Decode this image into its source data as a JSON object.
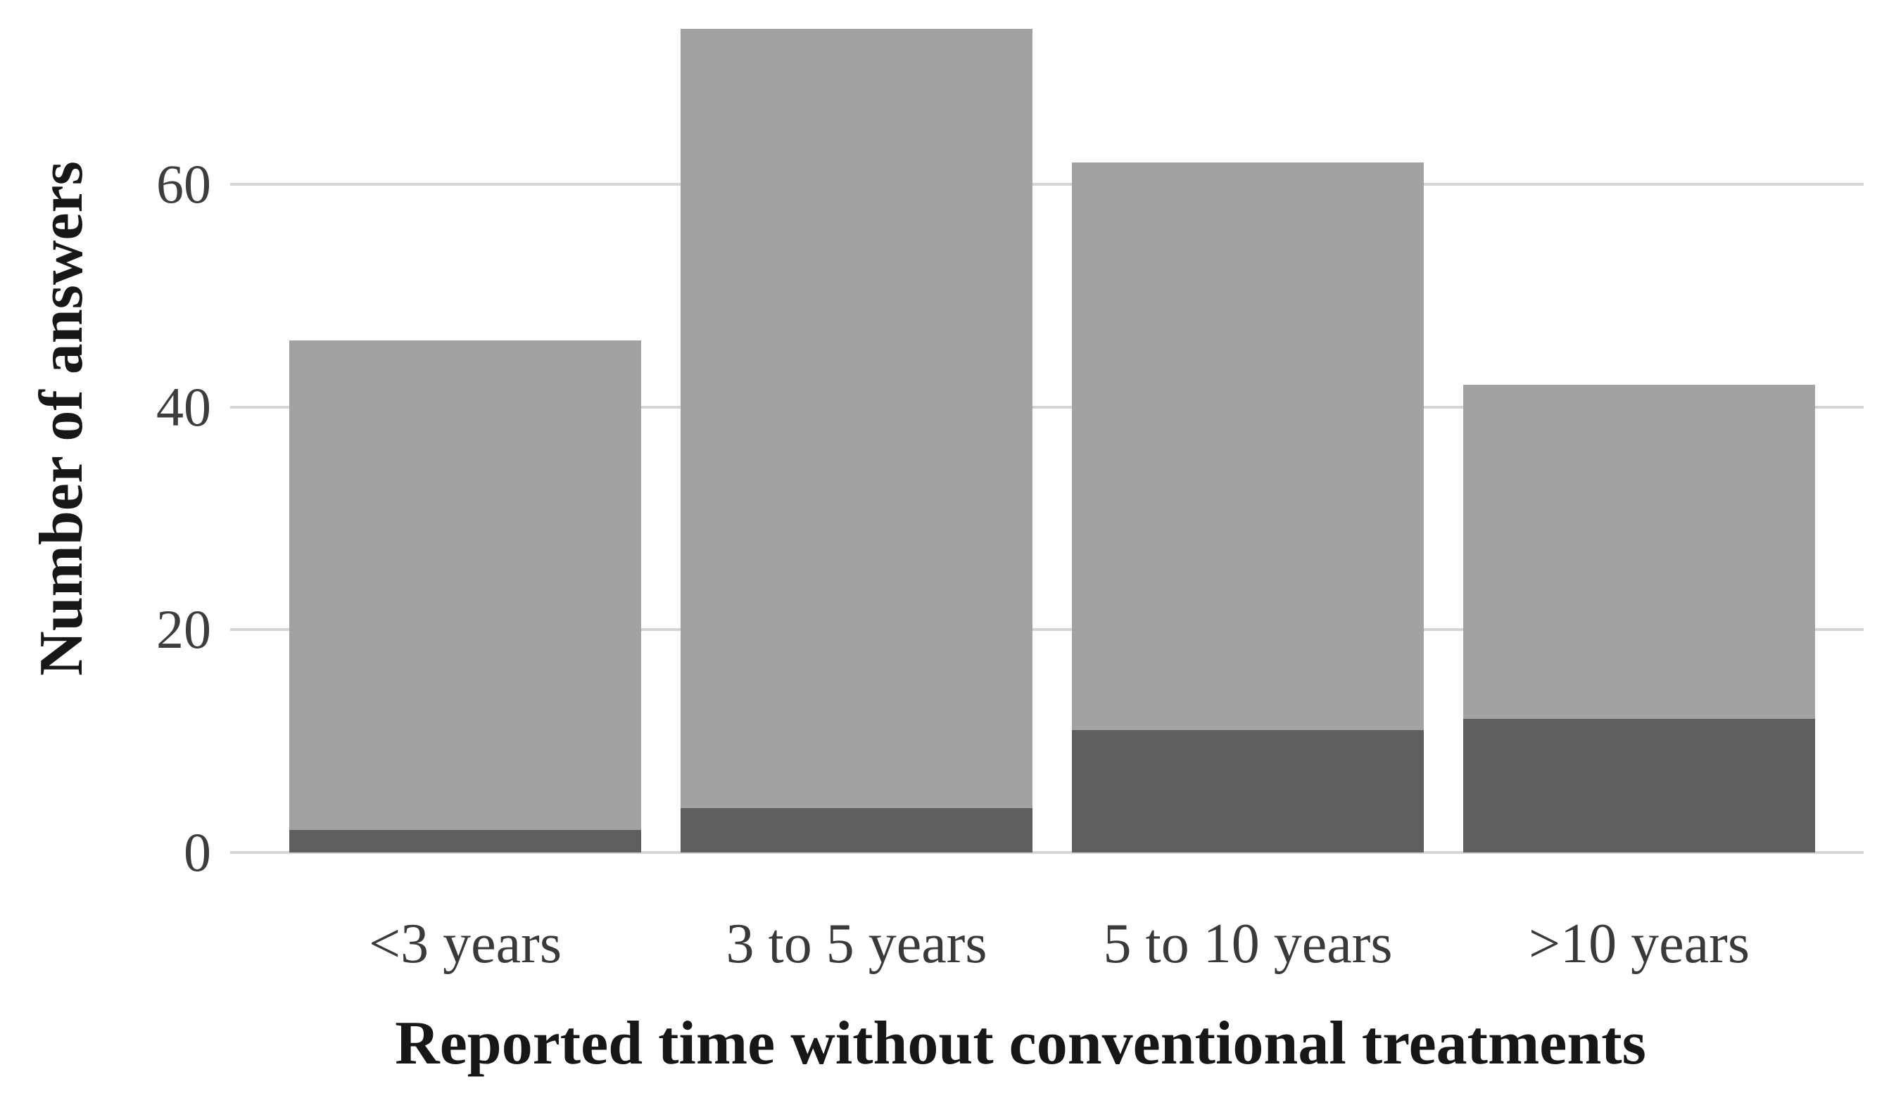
{
  "figure": {
    "y_axis_label": "Number of answers",
    "x_axis_title": "Reported time without conventional treatments"
  },
  "chart_data": {
    "type": "bar",
    "stacked": true,
    "title": "",
    "xlabel": "Reported time without conventional treatments",
    "ylabel": "Number of answers",
    "categories": [
      "<3 years",
      "3 to 5 years",
      "5 to 10 years",
      ">10 years"
    ],
    "series": [
      {
        "name": "bottom segment (dark gray)",
        "color": "#5e5e5e",
        "values": [
          2,
          4,
          11,
          12
        ]
      },
      {
        "name": "top segment (light gray)",
        "color": "#a2a2a2",
        "values": [
          44,
          70,
          51,
          30
        ]
      }
    ],
    "stacked_totals": [
      46,
      74,
      62,
      42
    ],
    "yticks": [
      0,
      20,
      40,
      60
    ],
    "ylim": [
      0,
      75.3
    ],
    "grid": true,
    "legend_position": "none",
    "colors": {
      "gridline": "#d5d5d5",
      "tick_text": "#3d3d3d",
      "label_text": "#171717"
    }
  }
}
